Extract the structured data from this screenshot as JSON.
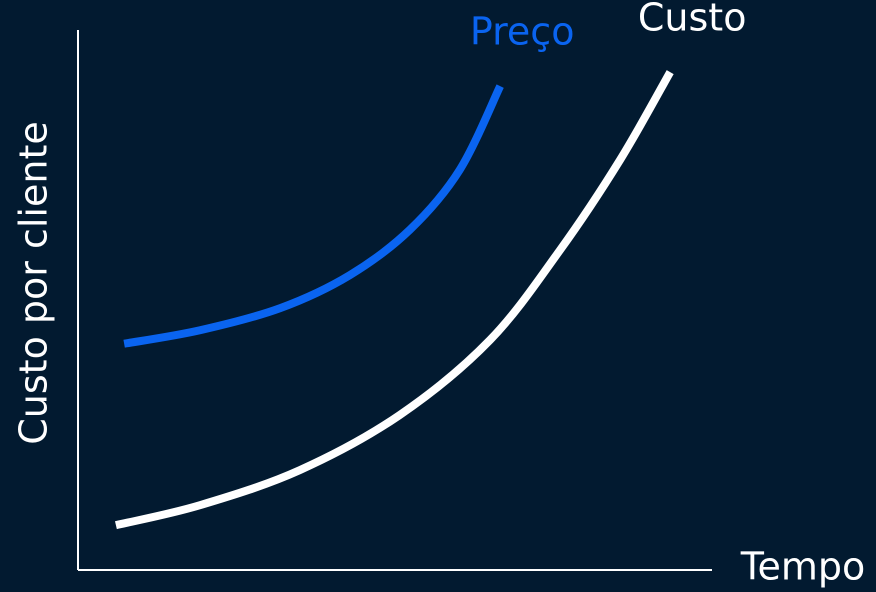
{
  "chart_data": {
    "type": "line",
    "x_label": "Tempo",
    "y_label": "Custo por cliente",
    "xlim": [
      0,
      100
    ],
    "ylim": [
      0,
      100
    ],
    "series": [
      {
        "name": "Preço",
        "color": "#0a64f0",
        "x": [
          7.3,
          19.3,
          32.0,
          43.0,
          52.5,
          60.4,
          66.8
        ],
        "values": [
          41.9,
          44.4,
          48.5,
          54.6,
          63.0,
          74.1,
          89.6
        ]
      },
      {
        "name": "Custo",
        "color": "#ffffff",
        "x": [
          6.0,
          19.3,
          35.1,
          50.9,
          65.2,
          76.3,
          85.8,
          93.7
        ],
        "values": [
          8.3,
          12.0,
          18.5,
          28.7,
          42.6,
          59.3,
          76.0,
          92.2
        ]
      }
    ]
  }
}
